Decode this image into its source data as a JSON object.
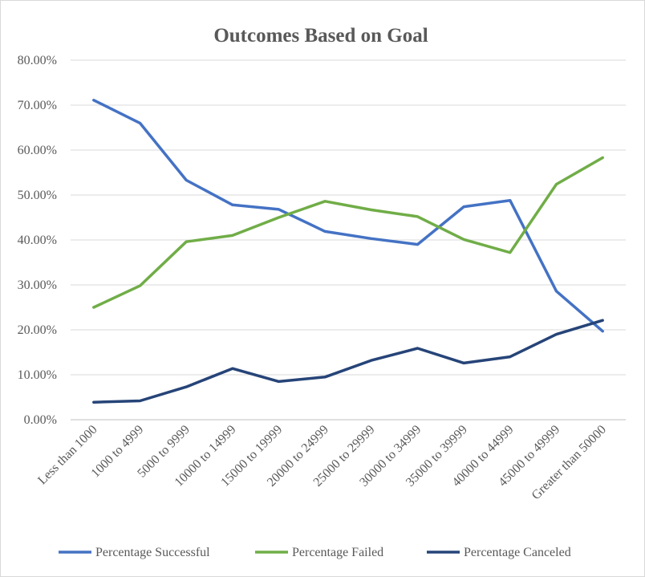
{
  "chart_data": {
    "type": "line",
    "title": "Outcomes Based on Goal",
    "xlabel": "",
    "ylabel": "",
    "ylim": [
      0,
      0.8
    ],
    "y_ticks": [
      "0.00%",
      "10.00%",
      "20.00%",
      "30.00%",
      "40.00%",
      "50.00%",
      "60.00%",
      "70.00%",
      "80.00%"
    ],
    "grid": true,
    "legend_position": "bottom",
    "categories": [
      "Less than 1000",
      "1000 to 4999",
      "5000 to 9999",
      "10000 to 14999",
      "15000 to 19999",
      "20000 to 24999",
      "25000 to 29999",
      "30000 to 34999",
      "35000 to 39999",
      "40000 to 44999",
      "45000 to 49999",
      "Greater than 50000"
    ],
    "series": [
      {
        "name": "Percentage Successful",
        "color": "#4472c4",
        "values": [
          0.711,
          0.66,
          0.533,
          0.478,
          0.468,
          0.419,
          0.403,
          0.39,
          0.474,
          0.488,
          0.286,
          0.197
        ]
      },
      {
        "name": "Percentage Failed",
        "color": "#70ad47",
        "values": [
          0.25,
          0.298,
          0.396,
          0.41,
          0.45,
          0.486,
          0.467,
          0.452,
          0.401,
          0.372,
          0.524,
          0.583
        ]
      },
      {
        "name": "Percentage Canceled",
        "color": "#264478",
        "values": [
          0.039,
          0.042,
          0.073,
          0.114,
          0.085,
          0.095,
          0.132,
          0.159,
          0.126,
          0.14,
          0.19,
          0.221
        ]
      }
    ]
  }
}
